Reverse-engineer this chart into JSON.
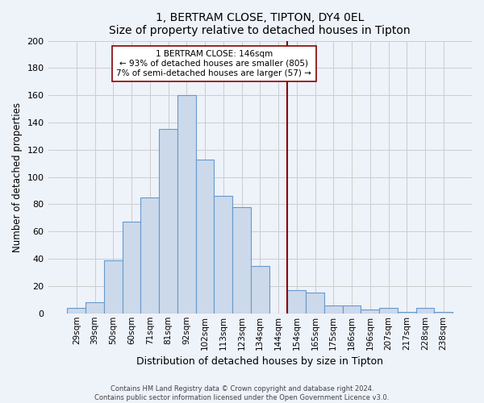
{
  "title": "1, BERTRAM CLOSE, TIPTON, DY4 0EL",
  "subtitle": "Size of property relative to detached houses in Tipton",
  "xlabel": "Distribution of detached houses by size in Tipton",
  "ylabel": "Number of detached properties",
  "bar_labels": [
    "29sqm",
    "39sqm",
    "50sqm",
    "60sqm",
    "71sqm",
    "81sqm",
    "92sqm",
    "102sqm",
    "113sqm",
    "123sqm",
    "134sqm",
    "144sqm",
    "154sqm",
    "165sqm",
    "175sqm",
    "186sqm",
    "196sqm",
    "207sqm",
    "217sqm",
    "228sqm",
    "238sqm"
  ],
  "bar_values": [
    4,
    8,
    39,
    67,
    85,
    135,
    160,
    113,
    86,
    78,
    35,
    0,
    17,
    15,
    6,
    6,
    3,
    4,
    1,
    4,
    1
  ],
  "bar_color": "#ccd9ea",
  "bar_edge_color": "#6699cc",
  "vline_color": "#8b0000",
  "annotation_title": "1 BERTRAM CLOSE: 146sqm",
  "annotation_line1": "← 93% of detached houses are smaller (805)",
  "annotation_line2": "7% of semi-detached houses are larger (57) →",
  "annotation_box_color": "#ffffff",
  "annotation_box_edge": "#8b0000",
  "ylim": [
    0,
    200
  ],
  "yticks": [
    0,
    20,
    40,
    60,
    80,
    100,
    120,
    140,
    160,
    180,
    200
  ],
  "footer1": "Contains HM Land Registry data © Crown copyright and database right 2024.",
  "footer2": "Contains public sector information licensed under the Open Government Licence v3.0.",
  "bg_color": "#eef2f9",
  "plot_bg_color": "#eef2f9",
  "grid_color": "#cccccc"
}
